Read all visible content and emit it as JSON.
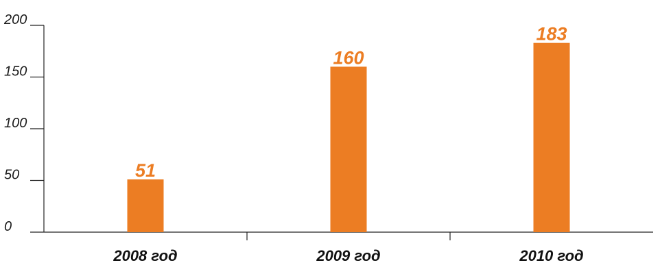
{
  "chart_data": {
    "type": "bar",
    "categories": [
      "2008 год",
      "2009 год",
      "2010 год"
    ],
    "values": [
      51,
      160,
      183
    ],
    "value_labels": [
      "51",
      "160",
      "183"
    ],
    "ylim": [
      0,
      200
    ],
    "yticks": [
      0,
      50,
      100,
      150,
      200
    ],
    "ytick_labels": [
      "0",
      "50",
      "100",
      "150",
      "200"
    ],
    "grid": false,
    "legend": "none",
    "bar_color": "#ec7d23",
    "label_color": "#ec7d23"
  }
}
